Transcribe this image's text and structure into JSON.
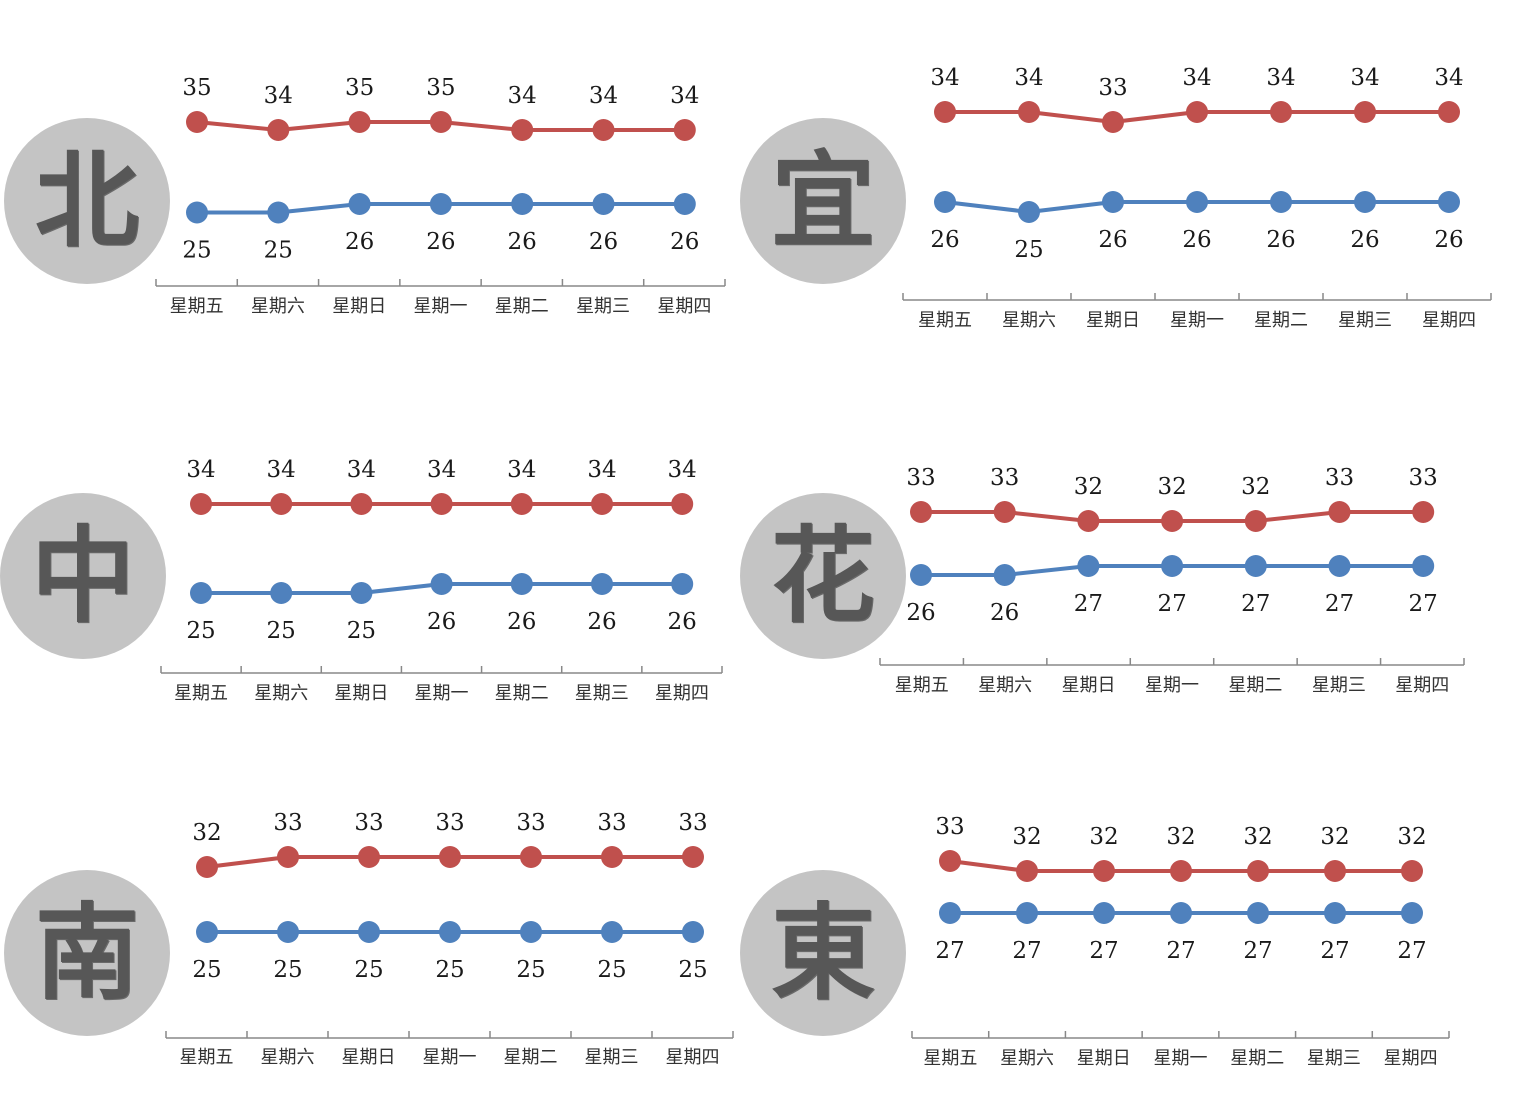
{
  "colors": {
    "high": "#c0504d",
    "low": "#4f81bd",
    "circle": "#c4c4c4",
    "axis": "#888888"
  },
  "chart_data": [
    {
      "type": "line",
      "region": "北",
      "categories": [
        "星期五",
        "星期六",
        "星期日",
        "星期一",
        "星期二",
        "星期三",
        "星期四"
      ],
      "series": [
        {
          "values": [
            35,
            34,
            35,
            35,
            34,
            34,
            34
          ]
        },
        {
          "values": [
            25,
            25,
            26,
            26,
            26,
            26,
            26
          ]
        }
      ]
    },
    {
      "type": "line",
      "region": "宜",
      "categories": [
        "星期五",
        "星期六",
        "星期日",
        "星期一",
        "星期二",
        "星期三",
        "星期四"
      ],
      "series": [
        {
          "values": [
            34,
            34,
            33,
            34,
            34,
            34,
            34
          ]
        },
        {
          "values": [
            26,
            25,
            26,
            26,
            26,
            26,
            26
          ]
        }
      ]
    },
    {
      "type": "line",
      "region": "中",
      "categories": [
        "星期五",
        "星期六",
        "星期日",
        "星期一",
        "星期二",
        "星期三",
        "星期四"
      ],
      "series": [
        {
          "values": [
            34,
            34,
            34,
            34,
            34,
            34,
            34
          ]
        },
        {
          "values": [
            25,
            25,
            25,
            26,
            26,
            26,
            26
          ]
        }
      ]
    },
    {
      "type": "line",
      "region": "花",
      "categories": [
        "星期五",
        "星期六",
        "星期日",
        "星期一",
        "星期二",
        "星期三",
        "星期四"
      ],
      "series": [
        {
          "values": [
            33,
            33,
            32,
            32,
            32,
            33,
            33
          ]
        },
        {
          "values": [
            26,
            26,
            27,
            27,
            27,
            27,
            27
          ]
        }
      ]
    },
    {
      "type": "line",
      "region": "南",
      "categories": [
        "星期五",
        "星期六",
        "星期日",
        "星期一",
        "星期二",
        "星期三",
        "星期四"
      ],
      "series": [
        {
          "values": [
            32,
            33,
            33,
            33,
            33,
            33,
            33
          ]
        },
        {
          "values": [
            25,
            25,
            25,
            25,
            25,
            25,
            25
          ]
        }
      ]
    },
    {
      "type": "line",
      "region": "東",
      "categories": [
        "星期五",
        "星期六",
        "星期日",
        "星期一",
        "星期二",
        "星期三",
        "星期四"
      ],
      "series": [
        {
          "values": [
            33,
            32,
            32,
            32,
            32,
            32,
            32
          ]
        },
        {
          "values": [
            27,
            27,
            27,
            27,
            27,
            27,
            27
          ]
        }
      ]
    }
  ]
}
